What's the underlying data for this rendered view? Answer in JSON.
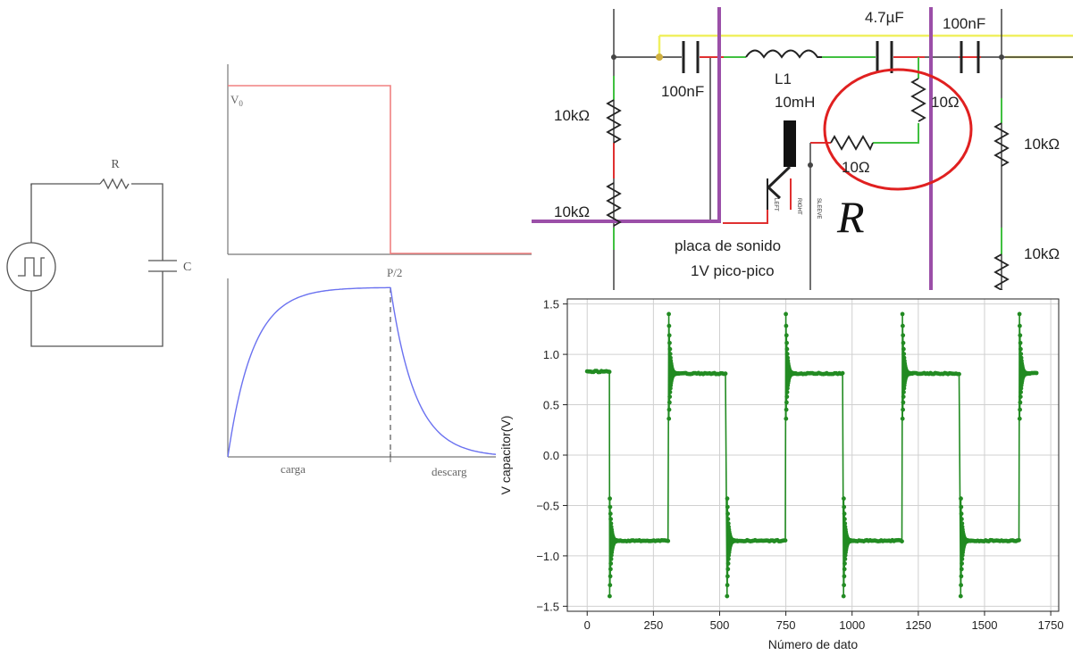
{
  "rc_circuit": {
    "resistor_label": "R",
    "capacitor_label": "C"
  },
  "waveforms": {
    "v0_label": "V",
    "v0_sub": "0",
    "half_period_label": "P/2",
    "charge_label": "carga",
    "discharge_label": "descarg"
  },
  "schematic": {
    "components": [
      {
        "id": "cap-left",
        "label": "100nF"
      },
      {
        "id": "inductor",
        "label": "L1"
      },
      {
        "id": "inductor-value",
        "label": "10mH"
      },
      {
        "id": "cap-mid",
        "label": "4.7µF"
      },
      {
        "id": "cap-right",
        "label": "100nF"
      },
      {
        "id": "res-left-top",
        "label": "10kΩ"
      },
      {
        "id": "res-left-bottom",
        "label": "10kΩ"
      },
      {
        "id": "res-circle-vertical",
        "label": "10Ω"
      },
      {
        "id": "res-circle-horizontal",
        "label": "10Ω"
      },
      {
        "id": "res-right-top",
        "label": "10kΩ"
      },
      {
        "id": "res-right-bottom",
        "label": "10kΩ"
      }
    ],
    "jack_pins": [
      "LEFT",
      "RIGHT",
      "SLEEVE"
    ],
    "big_label": "R",
    "sound_card_line1": "placa de sonido",
    "sound_card_line2": "1V pico-pico"
  },
  "chart_data": {
    "type": "line",
    "xlabel": "Número de dato",
    "ylabel": "V capacitor(V)",
    "xlim": [
      -75,
      1780
    ],
    "ylim": [
      -1.55,
      1.55
    ],
    "xticks": [
      0,
      250,
      500,
      750,
      1000,
      1250,
      1500,
      1750
    ],
    "yticks": [
      -1.5,
      -1.0,
      -0.5,
      0.0,
      0.5,
      1.0,
      1.5
    ],
    "ytick_labels": [
      "−1.5",
      "−1.0",
      "−0.5",
      "0.0",
      "0.5",
      "1.0",
      "1.5"
    ],
    "grid": true,
    "color": "#228b22",
    "marker": "o",
    "initial_level": 0.83,
    "high_level": 0.81,
    "low_level": -0.85,
    "overshoot_peak": 1.4,
    "transitions": [
      {
        "x": 85,
        "direction": "down"
      },
      {
        "x": 308,
        "direction": "up"
      },
      {
        "x": 528,
        "direction": "down"
      },
      {
        "x": 750,
        "direction": "up"
      },
      {
        "x": 968,
        "direction": "down"
      },
      {
        "x": 1190,
        "direction": "up"
      },
      {
        "x": 1410,
        "direction": "down"
      },
      {
        "x": 1632,
        "direction": "up"
      }
    ],
    "x_end": 1700
  }
}
